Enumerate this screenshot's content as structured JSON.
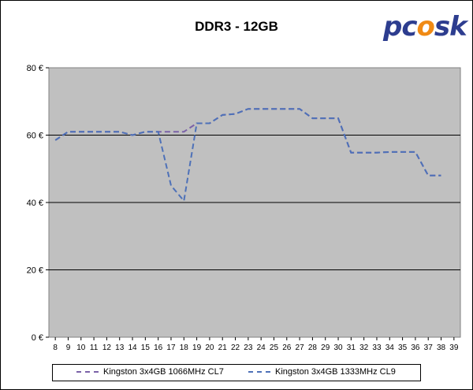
{
  "header": {
    "title": "DDR3 - 12GB",
    "logo_text_left": "pc",
    "logo_text_flame": "o",
    "logo_text_right": "sk"
  },
  "chart_data": {
    "type": "line",
    "title": "DDR3 - 12GB",
    "xlabel": "",
    "ylabel": "",
    "x": [
      8,
      9,
      10,
      11,
      12,
      13,
      14,
      15,
      16,
      17,
      18,
      19,
      20,
      21,
      22,
      23,
      24,
      25,
      26,
      27,
      28,
      29,
      30,
      31,
      32,
      33,
      34,
      35,
      36,
      37,
      38,
      39
    ],
    "xlim": [
      7.5,
      39.5
    ],
    "ylim": [
      0,
      80
    ],
    "yticks": [
      0,
      20,
      40,
      60,
      80
    ],
    "ytick_labels": [
      "0 €",
      "20 €",
      "40 €",
      "60 €",
      "80 €"
    ],
    "grid": true,
    "legend_position": "bottom",
    "background": "#c0c0c0",
    "series": [
      {
        "name": "Kingston 3x4GB 1066MHz CL7",
        "color": "#7b62a8",
        "style": "dashed",
        "values": [
          58.5,
          61,
          61,
          61,
          61,
          61,
          60,
          61,
          61,
          61,
          61,
          63.5,
          63.5,
          66,
          66.3,
          67.8,
          67.8,
          67.8,
          67.8,
          67.8,
          65,
          65,
          65,
          54.8,
          54.8,
          54.8,
          55,
          55,
          55,
          48,
          48,
          null
        ]
      },
      {
        "name": "Kingston 3x4GB 1333MHz CL9",
        "color": "#4e71b8",
        "style": "dashed",
        "values": [
          58.5,
          61,
          61,
          61,
          61,
          61,
          60,
          61,
          61,
          45,
          40.5,
          63.5,
          63.5,
          66,
          66.3,
          67.8,
          67.8,
          67.8,
          67.8,
          67.8,
          65,
          65,
          65,
          54.8,
          54.8,
          54.8,
          55,
          55,
          55,
          48,
          48,
          null
        ]
      }
    ]
  }
}
